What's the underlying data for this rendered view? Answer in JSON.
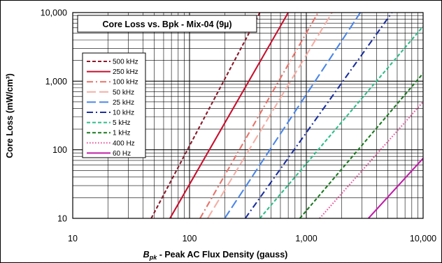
{
  "chart_data": {
    "type": "line",
    "title": "Core Loss vs. Bpk - Mix-04  (9µ)",
    "xlabel_italic": "B",
    "xlabel_sub": "pk",
    "xlabel_rest": " - Peak AC Flux Density (gauss)",
    "ylabel": "Core Loss (mW/cm³)",
    "x_scale": "log",
    "y_scale": "log",
    "xlim": [
      10,
      10000
    ],
    "ylim": [
      10,
      10000
    ],
    "x_ticks": [
      "10",
      "100",
      "1,000",
      "10,000"
    ],
    "y_ticks": [
      "10",
      "100",
      "1,000",
      "10,000"
    ],
    "grid": true,
    "legend_position": "top-left",
    "series": [
      {
        "name": "500 kHz",
        "color": "#8B1A2B",
        "dash": "dash",
        "start": [
          47,
          10
        ],
        "end": [
          400,
          10000
        ]
      },
      {
        "name": "250 kHz",
        "color": "#C8102E",
        "dash": "solid",
        "start": [
          68,
          10
        ],
        "end": [
          700,
          10000
        ]
      },
      {
        "name": "100 kHz",
        "color": "#E8736A",
        "dash": "dashdot",
        "start": [
          123,
          10
        ],
        "end": [
          1260,
          10000
        ]
      },
      {
        "name": "50 kHz",
        "color": "#F4AFA6",
        "dash": "longdash",
        "start": [
          143,
          10
        ],
        "end": [
          1660,
          10000
        ]
      },
      {
        "name": "25 kHz",
        "color": "#4A86E8",
        "dash": "longdash",
        "start": [
          200,
          10
        ],
        "end": [
          2900,
          10000
        ]
      },
      {
        "name": "10 kHz",
        "color": "#1A2F9E",
        "dash": "dashdot",
        "start": [
          300,
          10
        ],
        "end": [
          5400,
          10000
        ]
      },
      {
        "name": "5 kHz",
        "color": "#2EBE8A",
        "dash": "dash",
        "start": [
          400,
          10
        ],
        "end": [
          10000,
          6300
        ]
      },
      {
        "name": "1 kHz",
        "color": "#1A7A20",
        "dash": "dash",
        "start": [
          880,
          10
        ],
        "end": [
          10000,
          1300
        ]
      },
      {
        "name": "400 Hz",
        "color": "#E8559A",
        "dash": "dot",
        "start": [
          1300,
          10
        ],
        "end": [
          10000,
          500
        ]
      },
      {
        "name": "60 Hz",
        "color": "#C020A8",
        "dash": "solid",
        "start": [
          3400,
          10
        ],
        "end": [
          10000,
          75
        ]
      }
    ]
  }
}
